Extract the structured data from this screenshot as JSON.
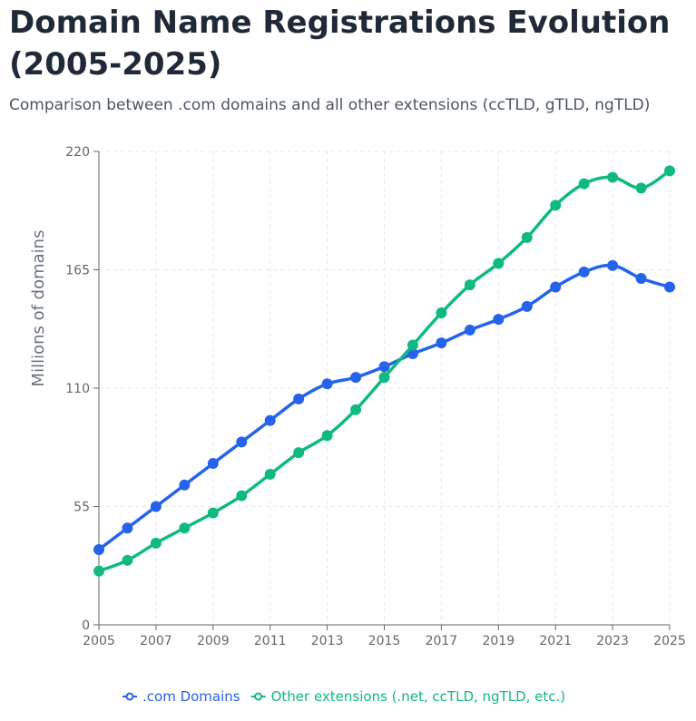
{
  "chart_data": {
    "type": "line",
    "title": "Domain Name Registrations Evolution (2005-2025)",
    "subtitle": "Comparison between .com domains and all other extensions (ccTLD, gTLD, ngTLD)",
    "y_label": "Millions of domains",
    "x": [
      2005,
      2006,
      2007,
      2008,
      2009,
      2010,
      2011,
      2012,
      2013,
      2014,
      2015,
      2016,
      2017,
      2018,
      2019,
      2020,
      2021,
      2022,
      2023,
      2024,
      2025
    ],
    "series": [
      {
        "name": ".com Domains",
        "color": "#2563eb",
        "values": [
          35,
          45,
          55,
          65,
          75,
          85,
          95,
          105,
          112,
          115,
          120,
          126,
          131,
          137,
          142,
          148,
          157,
          164,
          167,
          161,
          157
        ]
      },
      {
        "name": "Other extensions (.net, ccTLD, ngTLD, etc.)",
        "color": "#10b981",
        "values": [
          25,
          30,
          38,
          45,
          52,
          60,
          70,
          80,
          88,
          100,
          115,
          130,
          145,
          158,
          168,
          180,
          195,
          205,
          208,
          203,
          211
        ]
      }
    ],
    "xlim": [
      2005,
      2025
    ],
    "xticks": [
      2005,
      2007,
      2009,
      2011,
      2013,
      2015,
      2017,
      2019,
      2021,
      2023,
      2025
    ],
    "ylim": [
      0,
      220
    ],
    "yticks": [
      0,
      55,
      110,
      165,
      220
    ],
    "grid": true
  }
}
